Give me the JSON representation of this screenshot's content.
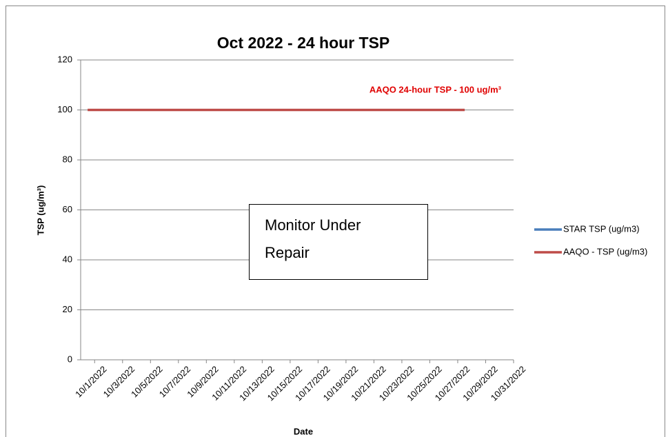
{
  "chart_data": {
    "type": "line",
    "title": "Oct 2022 - 24 hour TSP",
    "x_label": "Date",
    "y_label": "TSP (ug/m³)",
    "annotation": "AAQO 24-hour TSP - 100 ug/m³",
    "box_text": [
      "Monitor Under",
      "Repair"
    ],
    "categories": [
      "10/1/2022",
      null,
      "10/3/2022",
      null,
      "10/5/2022",
      null,
      "10/7/2022",
      null,
      "10/9/2022",
      null,
      "10/11/2022",
      null,
      "10/13/2022",
      null,
      "10/15/2022",
      null,
      "10/17/2022",
      null,
      "10/19/2022",
      null,
      "10/21/2022",
      null,
      "10/23/2022",
      null,
      "10/25/2022",
      null,
      "10/27/2022",
      null,
      "10/29/2022",
      null,
      "10/31/2022"
    ],
    "series": [
      {
        "name": "STAR TSP (ug/m3)",
        "color": "#4a7ebb",
        "values": [
          null,
          null,
          null,
          null,
          null,
          null,
          null,
          null,
          null,
          null,
          null,
          null,
          null,
          null,
          null,
          null,
          null,
          null,
          null,
          null,
          null,
          null,
          null,
          null,
          null,
          null,
          null,
          null,
          null,
          null,
          null
        ]
      },
      {
        "name": "AAQO - TSP (ug/m3)",
        "color": "#be4b48",
        "values": [
          100,
          100,
          100,
          100,
          100,
          100,
          100,
          100,
          100,
          100,
          100,
          100,
          100,
          100,
          100,
          100,
          100,
          100,
          100,
          100,
          100,
          100,
          100,
          100,
          100,
          100,
          100,
          100,
          null,
          null,
          null
        ]
      }
    ],
    "ylim": [
      0,
      120
    ],
    "yticks": [
      0,
      20,
      40,
      60,
      80,
      100,
      120
    ],
    "grid": true,
    "legend": "right"
  }
}
